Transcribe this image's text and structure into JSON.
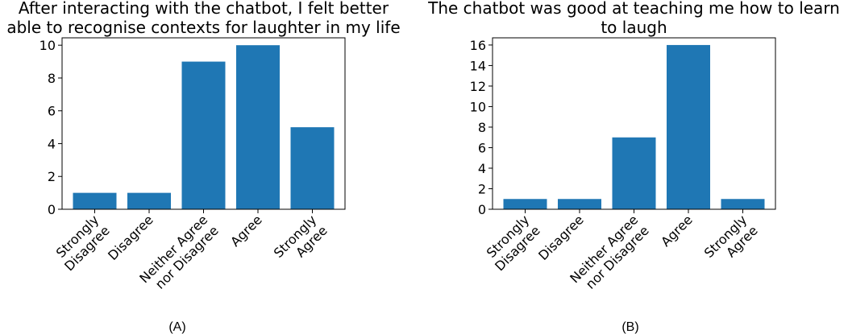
{
  "chart_data": [
    {
      "type": "bar",
      "title": "After interacting with the chatbot, I felt better\nable to recognise contexts for laughter in my life",
      "categories": [
        "Strongly\nDisagree",
        "Disagree",
        "Neither Agree\nnor Disagree",
        "Agree",
        "Strongly\nAgree"
      ],
      "values": [
        1,
        1,
        9,
        10,
        5
      ],
      "color": "#1f77b4",
      "ylim": [
        0,
        10.45
      ],
      "yticks": [
        0,
        2,
        4,
        6,
        8,
        10
      ],
      "caption": "(A)"
    },
    {
      "type": "bar",
      "title": "The chatbot was good at teaching me how to learn\nto laugh",
      "categories": [
        "Strongly\nDisagree",
        "Disagree",
        "Neither Agree\nnor Disagree",
        "Agree",
        "Strongly\nAgree"
      ],
      "values": [
        1,
        1,
        7,
        16,
        1
      ],
      "color": "#1f77b4",
      "ylim": [
        0,
        16.7
      ],
      "yticks": [
        0,
        2,
        4,
        6,
        8,
        10,
        12,
        14,
        16
      ],
      "caption": "(B)"
    }
  ]
}
